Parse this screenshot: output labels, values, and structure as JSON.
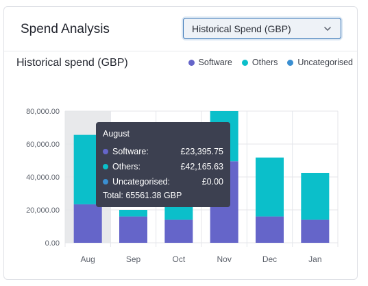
{
  "header": {
    "title": "Spend Analysis",
    "dropdown": {
      "selected": "Historical Spend (GBP)"
    }
  },
  "section": {
    "title": "Historical spend (GBP)"
  },
  "legend": [
    {
      "name": "Software",
      "color": "#6565c9"
    },
    {
      "name": "Others",
      "color": "#0bbfca"
    },
    {
      "name": "Uncategorised",
      "color": "#3b8fd1"
    }
  ],
  "tooltip": {
    "title": "August",
    "rows": [
      {
        "label": "Software:",
        "value": "£23,395.75",
        "color": "#6565c9"
      },
      {
        "label": "Others:",
        "value": "£42,165.63",
        "color": "#0bbfca"
      },
      {
        "label": "Uncategorised:",
        "value": "£0.00",
        "color": "#3b8fd1"
      }
    ],
    "total": "Total: 65561.38 GBP"
  },
  "chart_data": {
    "type": "bar",
    "stacked": true,
    "categories": [
      "Aug",
      "Sep",
      "Oct",
      "Nov",
      "Dec",
      "Jan"
    ],
    "series": [
      {
        "name": "Software",
        "values": [
          23395.75,
          16000,
          14000,
          49500,
          16000,
          14000
        ],
        "color": "#6565c9"
      },
      {
        "name": "Others",
        "values": [
          42165.63,
          4000,
          8000,
          31000,
          35800,
          28500
        ],
        "color": "#0bbfca"
      },
      {
        "name": "Uncategorised",
        "values": [
          0,
          0,
          0,
          0,
          0,
          0
        ],
        "color": "#3b8fd1"
      }
    ],
    "y_ticks": [
      "0.00",
      "20,000.00",
      "40,000.00",
      "60,000.00",
      "80,000.00"
    ],
    "ylim": [
      0,
      80000
    ],
    "grid": true,
    "highlighted_category": "Aug",
    "legend_position": "top-right"
  }
}
